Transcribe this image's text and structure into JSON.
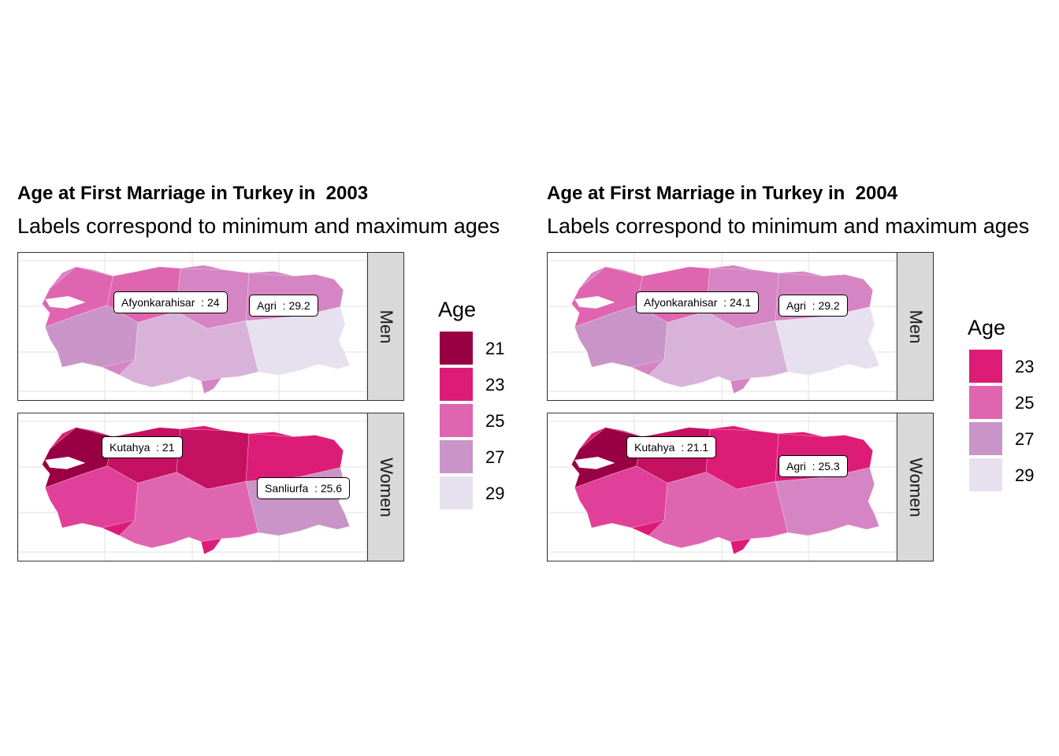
{
  "colors": {
    "21": "#980043",
    "22": "#c51162",
    "23": "#dd1c77",
    "24": "#e0409a",
    "25": "#df65b0",
    "26": "#d585c3",
    "27": "#c994c7",
    "28": "#d9b2d9",
    "29": "#e7e1ef"
  },
  "panels": [
    {
      "title": "Age at First Marriage in Turkey in  2003",
      "subtitle": "Labels correspond to minimum and maximum ages",
      "facets": [
        {
          "strip": "Men",
          "ages": [
            25,
            25,
            26,
            26,
            27,
            28,
            29
          ],
          "base": 26,
          "labels": [
            {
              "text": "Afyonkarahisar  : 24"
            },
            {
              "text": "Agri  : 29.2"
            }
          ]
        },
        {
          "strip": "Women",
          "ages": [
            21,
            22,
            22,
            23,
            24,
            25,
            27
          ],
          "base": 23,
          "labels": [
            {
              "text": "Kutahya  : 21"
            },
            {
              "text": "Sanliurfa  : 25.6"
            }
          ]
        }
      ],
      "legend": {
        "title": "Age",
        "items": [
          21,
          23,
          25,
          27,
          29
        ]
      }
    },
    {
      "title": "Age at First Marriage in Turkey in  2004",
      "subtitle": "Labels correspond to minimum and maximum ages",
      "facets": [
        {
          "strip": "Men",
          "ages": [
            25,
            25,
            26,
            26,
            27,
            28,
            29
          ],
          "base": 26,
          "labels": [
            {
              "text": "Afyonkarahisar  : 24.1"
            },
            {
              "text": "Agri  : 29.2"
            }
          ]
        },
        {
          "strip": "Women",
          "ages": [
            21,
            22,
            23,
            23,
            24,
            25,
            26
          ],
          "base": 23,
          "labels": [
            {
              "text": "Kutahya  : 21.1"
            },
            {
              "text": "Agri  : 25.3"
            }
          ]
        }
      ],
      "legend": {
        "title": "Age",
        "items": [
          23,
          25,
          27,
          29
        ]
      }
    }
  ]
}
